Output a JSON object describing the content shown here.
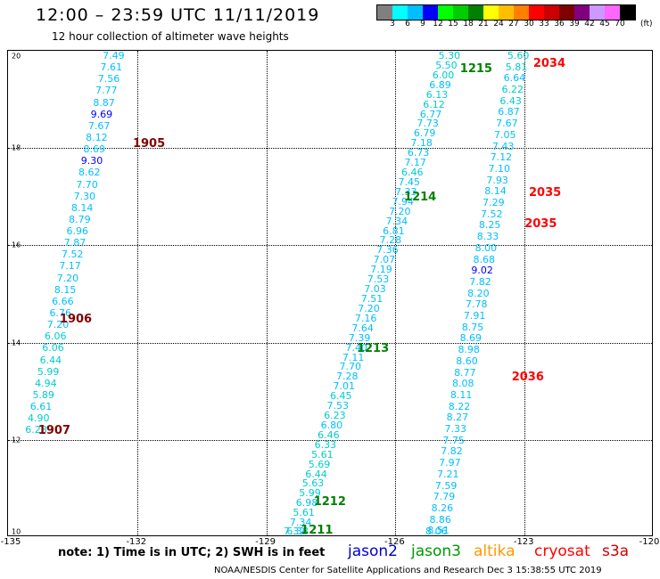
{
  "title": "12:00 – 23:59 UTC 11/11/2019",
  "subtitle": "12 hour collection of altimeter wave heights",
  "colorbar": {
    "colors": [
      "#808080",
      "#00ffff",
      "#00bfff",
      "#0000ff",
      "#00ff00",
      "#00cc00",
      "#008000",
      "#ffff00",
      "#ffbf00",
      "#ff8000",
      "#ff0000",
      "#cc0000",
      "#800000",
      "#800080",
      "#cc99ff",
      "#ff66ff",
      "#000000"
    ],
    "labels": [
      "3",
      "6",
      "9",
      "12",
      "15",
      "18",
      "21",
      "24",
      "27",
      "30",
      "33",
      "36",
      "39",
      "42",
      "45",
      "70"
    ],
    "unit": "(ft)"
  },
  "x_ticks": [
    "-135",
    "-132",
    "-129",
    "-126",
    "-123",
    "-120"
  ],
  "y_ticks": [
    "20",
    "18",
    "16",
    "14",
    "12",
    "10"
  ],
  "note": "note:  1) Time is in UTC;  2) SWH is in feet",
  "legend": [
    {
      "name": "jason2",
      "color": "#0000cc"
    },
    {
      "name": "jason3",
      "color": "#009900"
    },
    {
      "name": "altika",
      "color": "#ff9900"
    },
    {
      "name": "cryosat",
      "color": "#ff0000"
    },
    {
      "name": "s3a",
      "color": "#cc0000"
    }
  ],
  "footer": "NOAA/NESDIS Center for Satellite Applications and Research     Dec  3 15:38:55 UTC 2019",
  "pass_colors": {
    "jason3": "#008000",
    "s3a": "#800000",
    "cryosat": "#ff0000"
  },
  "wave_colors": {
    "low": "#00bfff",
    "cyan": "#00cccc",
    "high": "#0000ff"
  },
  "tracks": [
    {
      "id": "s3a_1905_1907",
      "lat_start": 20.0,
      "lat_end": 12.3,
      "lon_start": -132.8,
      "lon_end": -134.6,
      "values": [
        "7.49",
        "7.61",
        "7.56",
        "7.77",
        "8.87",
        "9.69",
        "7.67",
        "8.12",
        "8.69",
        "9.30",
        "8.62",
        "7.70",
        "7.30",
        "8.14",
        "8.79",
        "6.96",
        "7.87",
        "7.52",
        "7.17",
        "7.20",
        "8.15",
        "6.66",
        "6.76",
        "7.20",
        "6.06",
        "6.06",
        "6.44",
        "5.99",
        "4.94",
        "5.89",
        "6.61",
        "4.90",
        "6.28"
      ]
    },
    {
      "id": "jason3_1211_1215",
      "lat_start": 20.0,
      "lat_end": 10.0,
      "lon_start": -125.0,
      "lon_end": -128.6,
      "values": [
        "5.30",
        "5.50",
        "6.00",
        "6.89",
        "6.13",
        "6.12",
        "6.77",
        "7.73",
        "6.79",
        "7.18",
        "6.73",
        "7.17",
        "6.46",
        "7.45",
        "7.33",
        "7.94",
        "7.20",
        "7.34",
        "6.81",
        "7.28",
        "7.36",
        "7.07",
        "7.19",
        "7.53",
        "7.03",
        "7.51",
        "7.20",
        "7.16",
        "7.64",
        "7.39",
        "7.40",
        "7.11",
        "7.70",
        "7.28",
        "7.01",
        "6.45",
        "7.53",
        "6.23",
        "6.80",
        "6.46",
        "6.33",
        "5.61",
        "5.69",
        "6.44",
        "5.63",
        "5.99",
        "6.98",
        "5.61",
        "7.34",
        "6.38",
        "7.32"
      ]
    },
    {
      "id": "cryosat_2034_2036",
      "lat_start": 20.0,
      "lat_end": 10.0,
      "lon_start": -123.4,
      "lon_end": -125.3,
      "values": [
        "5.60",
        "5.81",
        "6.64",
        "6.22",
        "6.43",
        "6.87",
        "7.67",
        "7.05",
        "7.43",
        "7.12",
        "7.10",
        "7.93",
        "8.14",
        "7.29",
        "7.52",
        "8.25",
        "8.33",
        "8.00",
        "8.68",
        "9.02",
        "7.82",
        "8.20",
        "7.78",
        "7.91",
        "8.75",
        "8.69",
        "8.98",
        "8.60",
        "8.77",
        "8.08",
        "8.11",
        "8.22",
        "8.27",
        "7.33",
        "7.75",
        "7.82",
        "7.97",
        "7.21",
        "7.59",
        "7.79",
        "8.26",
        "8.86",
        "8.51",
        "8.06"
      ]
    }
  ],
  "pass_labels": [
    {
      "text": "1905",
      "sat": "s3a",
      "lon": -132.1,
      "lat": 18.2
    },
    {
      "text": "1906",
      "sat": "s3a",
      "lon": -133.8,
      "lat": 14.6
    },
    {
      "text": "1907",
      "sat": "s3a",
      "lon": -134.3,
      "lat": 12.3
    },
    {
      "text": "1215",
      "sat": "jason3",
      "lon": -124.5,
      "lat": 19.75
    },
    {
      "text": "1214",
      "sat": "jason3",
      "lon": -125.8,
      "lat": 17.1
    },
    {
      "text": "1213",
      "sat": "jason3",
      "lon": -126.9,
      "lat": 14.0
    },
    {
      "text": "1212",
      "sat": "jason3",
      "lon": -127.9,
      "lat": 10.85
    },
    {
      "text": "1211",
      "sat": "jason3",
      "lon": -128.2,
      "lat": 10.1
    },
    {
      "text": "2034",
      "sat": "cryosat",
      "lon": -122.8,
      "lat": 19.85
    },
    {
      "text": "2035",
      "sat": "cryosat",
      "lon": -122.9,
      "lat": 17.2
    },
    {
      "text": "2035",
      "sat": "cryosat",
      "lon": -123.0,
      "lat": 16.55
    },
    {
      "text": "2036",
      "sat": "cryosat",
      "lon": -123.3,
      "lat": 13.4
    }
  ]
}
